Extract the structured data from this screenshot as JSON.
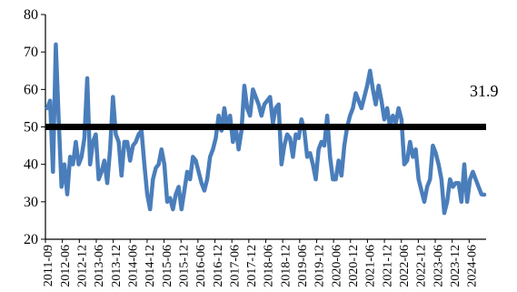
{
  "chart_data": {
    "type": "line",
    "title": "",
    "xlabel": "",
    "ylabel": "",
    "ylim": [
      20,
      80
    ],
    "yticks": [
      20,
      30,
      40,
      50,
      60,
      70,
      80
    ],
    "grid": false,
    "legend": "none",
    "x_tick_labels": [
      "2011-09",
      "2012-06",
      "2012-12",
      "2013-06",
      "2013-12",
      "2014-06",
      "2014-12",
      "2015-06",
      "2015-12",
      "2016-06",
      "2016-12",
      "2017-06",
      "2017-12",
      "2018-06",
      "2018-12",
      "2019-06",
      "2019-12",
      "2020-06",
      "2020-12",
      "2021-06",
      "2021-12",
      "2022-06",
      "2022-12",
      "2023-06",
      "2023-12",
      "2024-06"
    ],
    "x_start": "2011-09",
    "x_end": "2024-08",
    "series": [
      {
        "color": "#4a7ebb",
        "values": [
          55,
          57,
          38,
          72,
          52,
          34,
          40,
          32,
          42,
          40,
          46,
          40,
          42,
          47,
          63,
          40,
          46,
          48,
          36,
          38,
          41,
          35,
          44,
          58,
          48,
          46,
          37,
          46,
          46,
          41,
          45,
          46,
          48,
          49,
          40,
          32,
          28,
          36,
          39,
          40,
          44,
          40,
          30,
          31,
          28,
          32,
          34,
          28,
          33,
          38,
          36,
          42,
          41,
          38,
          35,
          33,
          36,
          42,
          44,
          47,
          53,
          49,
          55,
          50,
          53,
          46,
          50,
          44,
          49,
          61,
          55,
          53,
          60,
          58,
          56,
          53,
          56,
          57,
          58,
          51,
          55,
          56,
          40,
          45,
          48,
          47,
          42,
          48,
          47,
          52,
          49,
          42,
          43,
          40,
          36,
          44,
          46,
          45,
          53,
          42,
          36,
          36,
          41,
          37,
          45,
          50,
          53,
          55,
          59,
          57,
          55,
          58,
          61,
          65,
          60,
          56,
          61,
          57,
          52,
          55,
          50,
          53,
          51,
          55,
          52,
          40,
          41,
          46,
          42,
          44,
          36,
          33,
          30,
          34,
          36,
          45,
          43,
          40,
          36,
          27,
          30,
          36,
          34,
          35,
          35,
          30,
          40,
          30,
          36,
          38,
          36,
          34,
          32,
          31.9
        ]
      },
      {
        "color": "#000000",
        "values": [
          50,
          50
        ]
      }
    ],
    "annotations": [
      {
        "text": "31.9"
      }
    ]
  }
}
